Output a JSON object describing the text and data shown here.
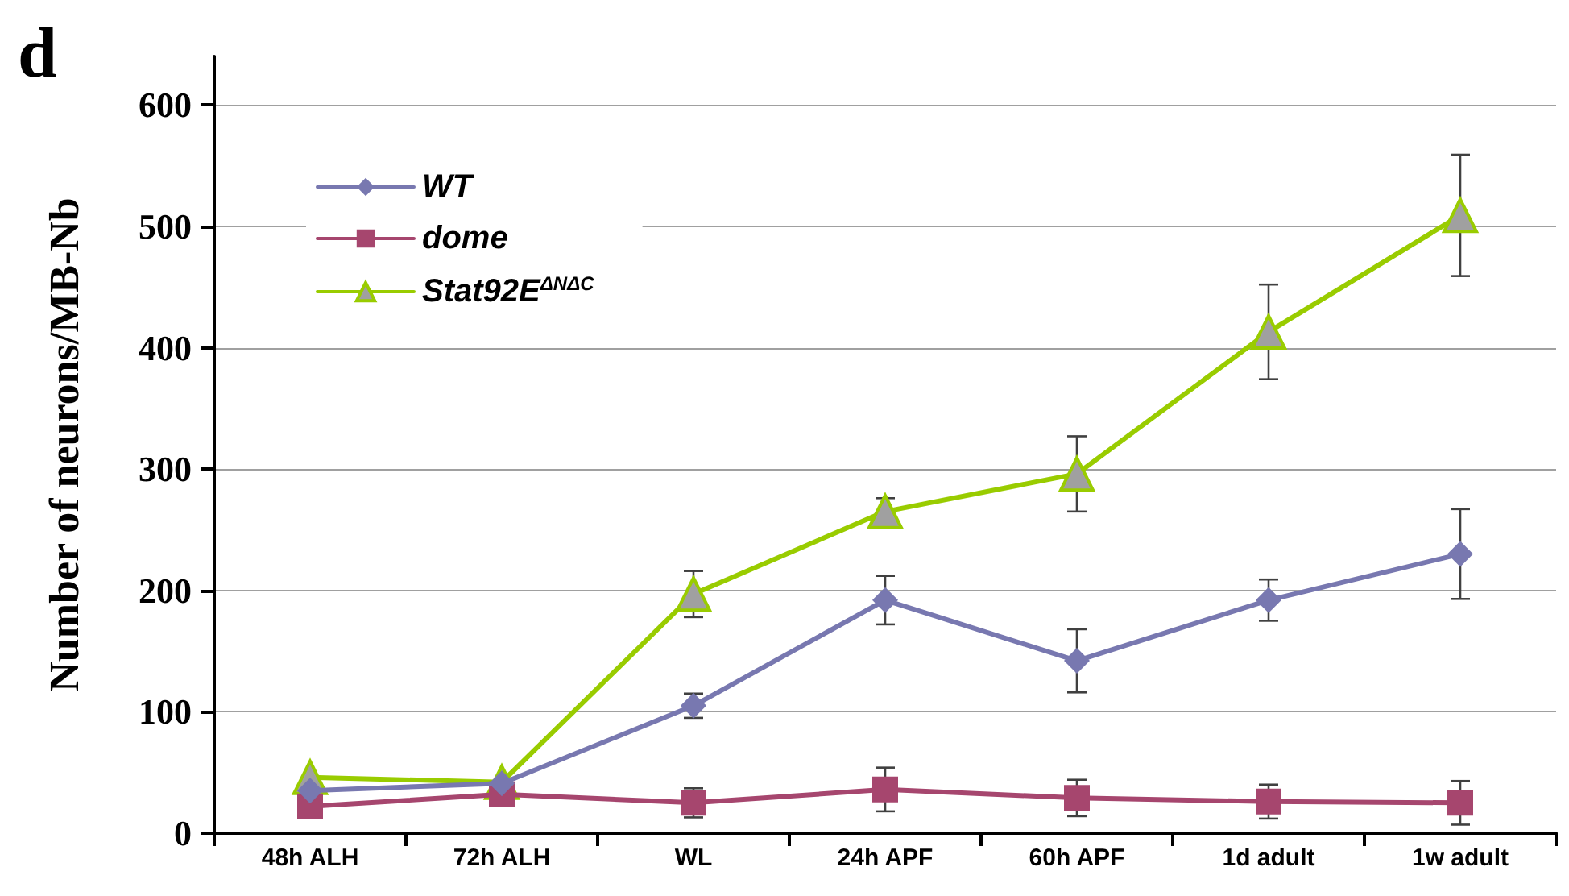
{
  "chart_data": {
    "type": "line",
    "title": "d",
    "ylabel": "Number of neurons/MB-Nb",
    "categories": [
      "48h ALH",
      "72h ALH",
      "WL",
      "24h APF",
      "60h APF",
      "1d adult",
      "1w adult"
    ],
    "series": [
      {
        "name": "WT",
        "color": "#7878b0",
        "marker": "diamond",
        "values": [
          35,
          41,
          105,
          192,
          142,
          192,
          230
        ],
        "errors": [
          null,
          null,
          10,
          20,
          26,
          17,
          37
        ]
      },
      {
        "name": "dome",
        "color": "#a6466e",
        "marker": "square",
        "values": [
          22,
          32,
          25,
          36,
          29,
          26,
          25
        ],
        "errors": [
          null,
          null,
          12,
          18,
          15,
          14,
          18
        ]
      },
      {
        "name": "Stat92E$^{ΔNΔC}$",
        "color": "#99cc00",
        "marker": "triangle",
        "values": [
          46,
          42,
          197,
          265,
          296,
          413,
          509
        ],
        "errors": [
          null,
          null,
          19,
          11,
          31,
          39,
          50
        ]
      }
    ],
    "ylim": [
      0,
      640
    ],
    "yticks": [
      0,
      100,
      200,
      300,
      400,
      500,
      600
    ],
    "grid": "y",
    "legend": "top left"
  }
}
